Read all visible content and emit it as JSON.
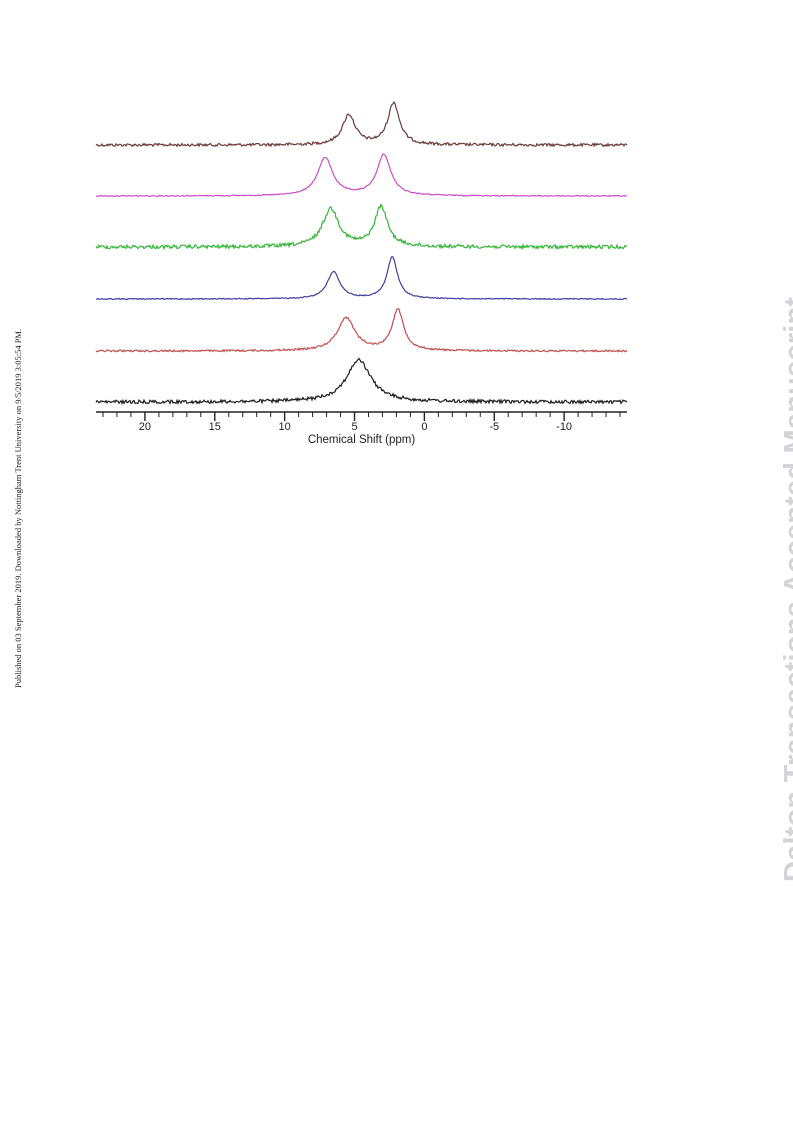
{
  "publication_note": "Published on 03 September 2019. Downloaded by Nottingham Trent University on 9/5/2019 3:05:54 PM.",
  "watermark": "Dalton Transactions Accepted Manuscript",
  "chart_data": {
    "type": "line",
    "title": "",
    "xlabel": "Chemical Shift (ppm)",
    "ylabel": "",
    "x_reversed": true,
    "xlim": [
      23.5,
      -14.5
    ],
    "major_ticks": [
      20,
      15,
      10,
      5,
      0,
      -5,
      -10
    ],
    "tick_labels": [
      "20",
      "15",
      "10",
      "5",
      "0",
      "-5",
      "-10"
    ],
    "minor_tick_step": 1,
    "grid": false,
    "legend": "none",
    "series": [
      {
        "color": "#6b3a3a",
        "peaks": [
          [
            5.4,
            30,
            0.55
          ],
          [
            2.2,
            42,
            0.5
          ]
        ],
        "noise": 1.4
      },
      {
        "color": "#c94fc9",
        "peaks": [
          [
            7.1,
            38,
            0.65
          ],
          [
            2.9,
            41,
            0.6
          ]
        ],
        "noise": 0.5
      },
      {
        "color": "#35b535",
        "peaks": [
          [
            6.7,
            38,
            0.7
          ],
          [
            3.1,
            40,
            0.55
          ]
        ],
        "noise": 1.8
      },
      {
        "color": "#3f3f9e",
        "peaks": [
          [
            6.5,
            27,
            0.55
          ],
          [
            2.3,
            42,
            0.45
          ]
        ],
        "noise": 0.5
      },
      {
        "color": "#c05050",
        "peaks": [
          [
            5.6,
            33,
            0.75
          ],
          [
            1.9,
            41,
            0.5
          ]
        ],
        "noise": 0.9
      },
      {
        "color": "#1c1c1c",
        "peaks": [
          [
            4.7,
            42,
            1.05
          ]
        ],
        "noise": 1.7
      }
    ]
  }
}
